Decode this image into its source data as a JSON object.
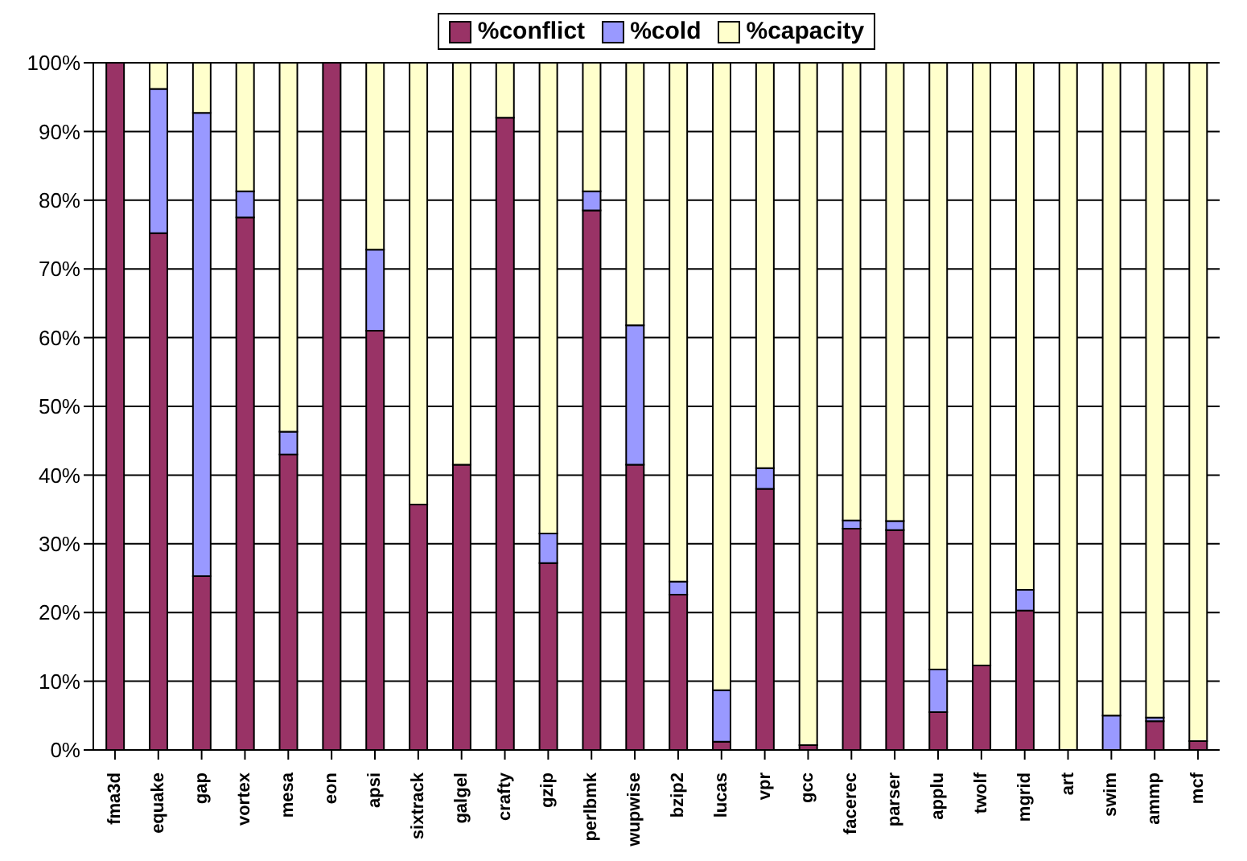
{
  "chart_data": {
    "type": "bar",
    "stacked": true,
    "categories": [
      "fma3d",
      "equake",
      "gap",
      "vortex",
      "mesa",
      "eon",
      "apsi",
      "sixtrack",
      "galgel",
      "crafty",
      "gzip",
      "perlbmk",
      "wupwise",
      "bzip2",
      "lucas",
      "vpr",
      "gcc",
      "facerec",
      "parser",
      "applu",
      "twolf",
      "mgrid",
      "art",
      "swim",
      "ammp",
      "mcf"
    ],
    "series": [
      {
        "name": "%conflict",
        "color": "#993366",
        "values": [
          100,
          75.2,
          25.3,
          77.5,
          43,
          100,
          61,
          35.7,
          41.5,
          92,
          27.2,
          78.5,
          41.5,
          22.6,
          1.2,
          38,
          0.7,
          32.2,
          32,
          5.5,
          12.3,
          20.3,
          null,
          null,
          4.2,
          1.3
        ]
      },
      {
        "name": "%cold",
        "color": "#9999ff",
        "values": [
          0,
          21,
          67.4,
          3.8,
          3.3,
          0,
          11.8,
          0,
          0,
          0,
          4.3,
          2.8,
          20.3,
          1.9,
          7.5,
          3,
          0,
          1.2,
          1.3,
          6.2,
          0,
          3,
          0,
          5,
          0.5,
          null
        ]
      },
      {
        "name": "%capacity",
        "color": "#ffffcc",
        "values": [
          0,
          3.8,
          7.3,
          18.7,
          53.7,
          0,
          27.2,
          64.3,
          58.5,
          8,
          68.5,
          18.7,
          38.2,
          75.5,
          91.3,
          59,
          99.3,
          66.6,
          66.7,
          88.3,
          87.7,
          76.7,
          100,
          95,
          95.3,
          98.7
        ]
      }
    ],
    "ylim": [
      0,
      100
    ],
    "yticks": [
      {
        "value": 0,
        "label": "0%"
      },
      {
        "value": 10,
        "label": "10%"
      },
      {
        "value": 20,
        "label": "20%"
      },
      {
        "value": 30,
        "label": "30%"
      },
      {
        "value": 40,
        "label": "40%"
      },
      {
        "value": 50,
        "label": "50%"
      },
      {
        "value": 60,
        "label": "60%"
      },
      {
        "value": 70,
        "label": "70%"
      },
      {
        "value": 80,
        "label": "80%"
      },
      {
        "value": 90,
        "label": "90%"
      },
      {
        "value": 100,
        "label": "100%"
      }
    ],
    "grid": "y",
    "legend": "top"
  }
}
